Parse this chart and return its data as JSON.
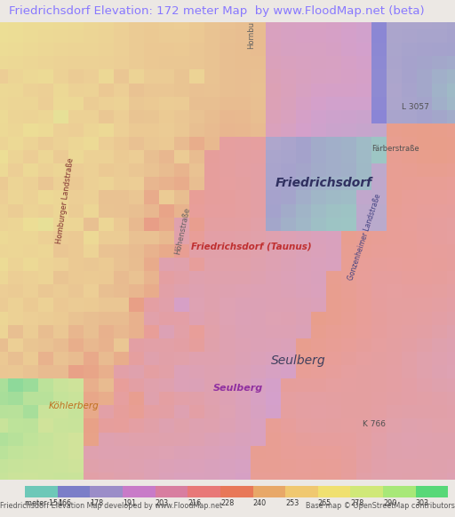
{
  "title": "Friedrichsdorf Elevation: 172 meter Map  by www.FloodMap.net (beta)",
  "title_color": "#8878ff",
  "bg_color": "#ece8e4",
  "legend_labels": [
    "meter 154",
    "166",
    "178",
    "191",
    "203",
    "216",
    "228",
    "240",
    "253",
    "265",
    "278",
    "290",
    "303"
  ],
  "legend_colors": [
    "#6dc8b8",
    "#7b7ec8",
    "#9b8dc8",
    "#c87bc8",
    "#d87ea0",
    "#e87878",
    "#e87858",
    "#e8a868",
    "#f0c870",
    "#f0e070",
    "#d0e878",
    "#a8e878",
    "#58d878"
  ],
  "footer_left": "Friedrichsdorf Elevation Map developed by www.FloodMap.net",
  "footer_right": "Base map © OpenStreetMap contributors",
  "map_base_color": "#e8ddd0",
  "elevation_cmap_colors": [
    "#5858e8",
    "#6868d8",
    "#7878d0",
    "#8888d0",
    "#9898c8",
    "#a8a0c0",
    "#b8a0c8",
    "#c8a0c8",
    "#d89888",
    "#e88868",
    "#e87848",
    "#e8a040",
    "#f0c040",
    "#f0e040",
    "#d0e050",
    "#a8e858",
    "#58d870",
    "#40c888"
  ],
  "seed": 12345
}
